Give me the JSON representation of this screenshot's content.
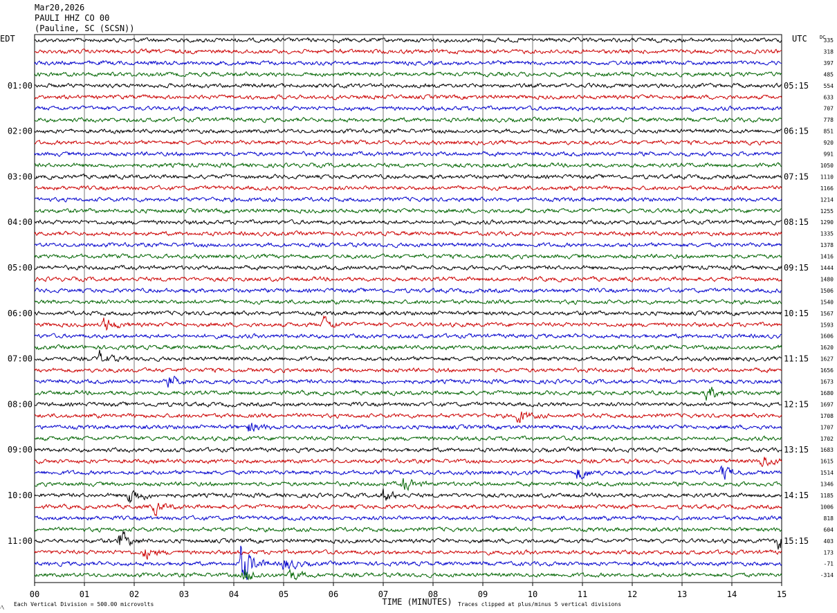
{
  "header": {
    "date": "Mar20,2026",
    "station": "PAULI HHZ CO 00",
    "location": "(Pauline, SC (SCSN))"
  },
  "left_zone": "EDT",
  "right_zone": "UTC",
  "dc_label": "DC",
  "footer": {
    "scale_note": "Each Vertical Division =  500.00 microvolts",
    "x_axis_label": "TIME (MINUTES)",
    "clip_note": "Traces clipped at plus/minus 5 vertical divisions",
    "corner_mark": "⁄\\"
  },
  "colors": {
    "black": "#000000",
    "red": "#cc0000",
    "blue": "#0000cc",
    "green": "#006400",
    "grid": "#000000"
  },
  "chart_data": {
    "type": "line",
    "title": "PAULI HHZ CO 00",
    "xlabel": "TIME (MINUTES)",
    "ylabel": "",
    "xlim": [
      0,
      15
    ],
    "x_ticks": [
      "00",
      "01",
      "02",
      "03",
      "04",
      "05",
      "06",
      "07",
      "08",
      "09",
      "10",
      "11",
      "12",
      "13",
      "14",
      "15"
    ],
    "trace_colors": [
      "black",
      "red",
      "blue",
      "green"
    ],
    "left_hour_labels": [
      "01:00",
      "02:00",
      "03:00",
      "04:00",
      "05:00",
      "06:00",
      "07:00",
      "08:00",
      "09:00",
      "10:00",
      "11:00"
    ],
    "right_hour_labels": [
      "05:15",
      "06:15",
      "07:15",
      "08:15",
      "09:15",
      "10:15",
      "11:15",
      "12:15",
      "13:15",
      "14:15",
      "15:15"
    ],
    "dc_offsets": [
      335,
      318,
      397,
      485,
      554,
      633,
      707,
      778,
      851,
      920,
      991,
      1050,
      1110,
      1166,
      1214,
      1255,
      1290,
      1335,
      1378,
      1416,
      1444,
      1480,
      1506,
      1540,
      1567,
      1593,
      1606,
      1620,
      1627,
      1656,
      1673,
      1680,
      1697,
      1708,
      1707,
      1702,
      1683,
      1615,
      1514,
      1346,
      1185,
      1006,
      818,
      604,
      403,
      173,
      -71,
      -314
    ],
    "events": [
      {
        "trace": 25,
        "minute": 1.4,
        "amp": 1.5
      },
      {
        "trace": 25,
        "minute": 5.8,
        "amp": 1.3
      },
      {
        "trace": 28,
        "minute": 1.3,
        "amp": 1.3
      },
      {
        "trace": 30,
        "minute": 2.7,
        "amp": 1.2
      },
      {
        "trace": 31,
        "minute": 13.5,
        "amp": 1.5
      },
      {
        "trace": 33,
        "minute": 9.7,
        "amp": 1.5
      },
      {
        "trace": 34,
        "minute": 4.3,
        "amp": 1.2
      },
      {
        "trace": 37,
        "minute": 14.6,
        "amp": 1.3
      },
      {
        "trace": 38,
        "minute": 10.9,
        "amp": 1.6
      },
      {
        "trace": 38,
        "minute": 13.8,
        "amp": 1.4
      },
      {
        "trace": 39,
        "minute": 7.4,
        "amp": 1.4
      },
      {
        "trace": 40,
        "minute": 1.9,
        "amp": 2.2
      },
      {
        "trace": 40,
        "minute": 7.0,
        "amp": 1.3
      },
      {
        "trace": 41,
        "minute": 2.4,
        "amp": 1.2
      },
      {
        "trace": 44,
        "minute": 1.7,
        "amp": 2.0
      },
      {
        "trace": 44,
        "minute": 14.9,
        "amp": 2.0
      },
      {
        "trace": 45,
        "minute": 2.2,
        "amp": 1.2
      },
      {
        "trace": 46,
        "minute": 4.15,
        "amp": 4.8
      },
      {
        "trace": 46,
        "minute": 5.0,
        "amp": 1.6
      },
      {
        "trace": 47,
        "minute": 4.2,
        "amp": 1.8
      },
      {
        "trace": 47,
        "minute": 5.1,
        "amp": 1.3
      }
    ]
  }
}
